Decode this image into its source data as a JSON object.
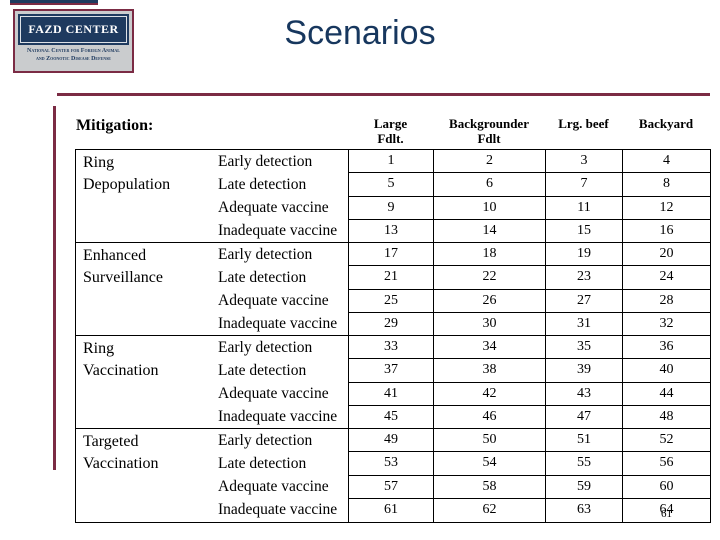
{
  "page": {
    "title": "Scenarios",
    "page_number": "61"
  },
  "logo": {
    "name": "FAZD CENTER",
    "subtitle_line1": "National Center for Foreign Animal",
    "subtitle_line2": "and Zoonotic Disease Defense"
  },
  "colors": {
    "accent_maroon": "#7b2b44",
    "title_navy": "#17375e",
    "logo_navy": "#1e3a5f"
  },
  "table": {
    "section_label": "Mitigation:",
    "headers": [
      {
        "line1": "Large",
        "line2": "Fdlt."
      },
      {
        "line1": "Backgrounder",
        "line2": "Fdlt"
      },
      {
        "line1": "Lrg. beef",
        "line2": ""
      },
      {
        "line1": "Backyard",
        "line2": ""
      }
    ],
    "groups": [
      {
        "mitigation": "Ring Depopulation",
        "strategies": [
          "Early detection",
          "Late detection",
          "Adequate vaccine",
          "Inadequate vaccine"
        ],
        "scenarios": [
          [
            1,
            2,
            3,
            4
          ],
          [
            5,
            6,
            7,
            8
          ],
          [
            9,
            10,
            11,
            12
          ],
          [
            13,
            14,
            15,
            16
          ]
        ]
      },
      {
        "mitigation": "Enhanced Surveillance",
        "strategies": [
          "Early detection",
          "Late detection",
          "Adequate vaccine",
          "Inadequate vaccine"
        ],
        "scenarios": [
          [
            17,
            18,
            19,
            20
          ],
          [
            21,
            22,
            23,
            24
          ],
          [
            25,
            26,
            27,
            28
          ],
          [
            29,
            30,
            31,
            32
          ]
        ]
      },
      {
        "mitigation": "Ring Vaccination",
        "strategies": [
          "Early detection",
          "Late detection",
          "Adequate vaccine",
          "Inadequate vaccine"
        ],
        "scenarios": [
          [
            33,
            34,
            35,
            36
          ],
          [
            37,
            38,
            39,
            40
          ],
          [
            41,
            42,
            43,
            44
          ],
          [
            45,
            46,
            47,
            48
          ]
        ]
      },
      {
        "mitigation": "Targeted Vaccination",
        "strategies": [
          "Early detection",
          "Late detection",
          "Adequate vaccine",
          "Inadequate vaccine"
        ],
        "scenarios": [
          [
            49,
            50,
            51,
            52
          ],
          [
            53,
            54,
            55,
            56
          ],
          [
            57,
            58,
            59,
            60
          ],
          [
            61,
            62,
            63,
            64
          ]
        ]
      }
    ]
  }
}
